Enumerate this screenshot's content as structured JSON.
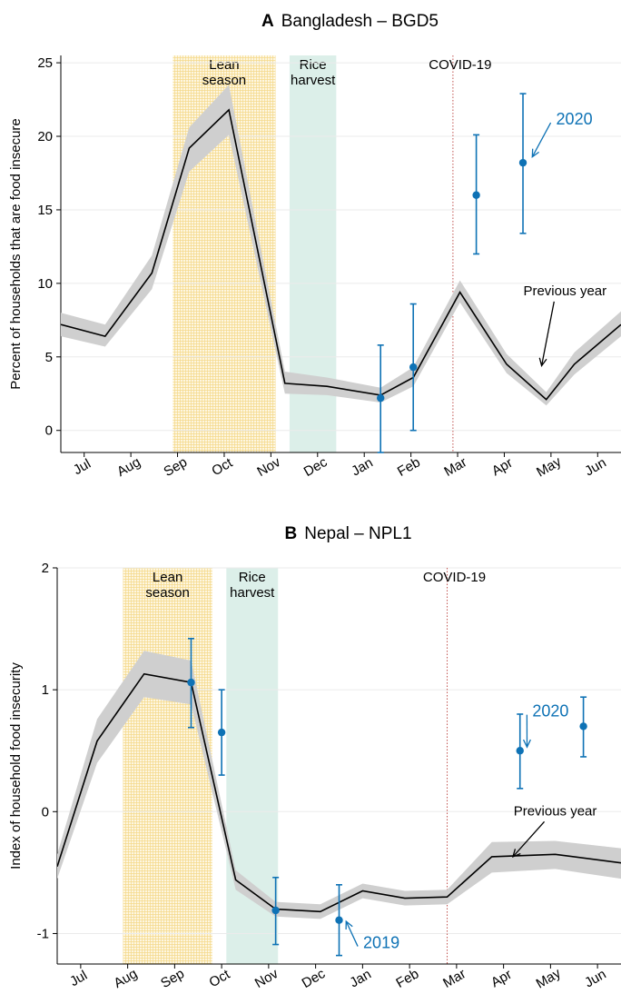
{
  "chart_data": [
    {
      "type": "line",
      "panel_letter": "A",
      "title": "Bangladesh – BGD5",
      "xlabel": "",
      "ylabel": "Percent of households that are food insecure",
      "ylim": [
        -1.5,
        25.5
      ],
      "yticks": [
        0,
        5,
        10,
        15,
        20,
        25
      ],
      "xlim": [
        0,
        12
      ],
      "xtick_positions": [
        0.5,
        1.5,
        2.5,
        3.5,
        4.5,
        5.5,
        6.5,
        7.5,
        8.5,
        9.5,
        10.5,
        11.5
      ],
      "xtick_labels": [
        "Jul",
        "Aug",
        "Sep",
        "Oct",
        "Nov",
        "Dec",
        "Jan",
        "Feb",
        "Mar",
        "Apr",
        "May",
        "Jun"
      ],
      "shaded_regions": [
        {
          "label": "Lean season",
          "start": 2.4,
          "end": 4.6,
          "color": "#f5d98a"
        },
        {
          "label": "Rice harvest",
          "start": 4.9,
          "end": 5.9,
          "color": "#dcefe9"
        }
      ],
      "event_line": {
        "label": "COVID-19",
        "x": 8.4,
        "color": "#c0504d"
      },
      "series": [
        {
          "name": "Previous year",
          "color": "#000000",
          "ci_color": "#cfcfcf",
          "x": [
            0,
            0.95,
            1.95,
            2.75,
            3.6,
            4.8,
            5.7,
            6.85,
            7.55,
            8.55,
            9.55,
            10.4,
            11.0,
            12.0
          ],
          "y": [
            7.2,
            6.4,
            10.7,
            19.2,
            21.8,
            3.2,
            3.0,
            2.4,
            3.6,
            9.4,
            4.5,
            2.1,
            4.5,
            7.2
          ],
          "lower": [
            6.4,
            5.7,
            9.6,
            17.6,
            20.1,
            2.5,
            2.4,
            1.9,
            3.0,
            8.7,
            3.9,
            1.7,
            3.8,
            6.4
          ],
          "upper": [
            8.0,
            7.2,
            11.9,
            20.6,
            23.5,
            4.0,
            3.6,
            2.9,
            4.3,
            10.2,
            5.2,
            2.6,
            5.3,
            8.1
          ]
        },
        {
          "name": "2020",
          "color": "#0e72b5",
          "points": [
            {
              "x": 6.85,
              "y": 2.2,
              "lower": -1.5,
              "upper": 5.8
            },
            {
              "x": 7.55,
              "y": 4.3,
              "lower": 0.0,
              "upper": 8.6
            },
            {
              "x": 8.9,
              "y": 16.0,
              "lower": 12.0,
              "upper": 20.1
            },
            {
              "x": 9.9,
              "y": 18.2,
              "lower": 13.4,
              "upper": 22.9
            }
          ]
        }
      ],
      "annotations": [
        {
          "text": "2020",
          "color": "#0e72b5",
          "x": 11.0,
          "y": 20.8,
          "arrow_to": [
            10.1,
            18.6
          ]
        },
        {
          "text": "Previous year",
          "color": "#000000",
          "x": 10.8,
          "y": 9.2,
          "arrow_to": [
            10.3,
            4.4
          ]
        }
      ],
      "grid": "horizontal"
    },
    {
      "type": "line",
      "panel_letter": "B",
      "title": "Nepal – NPL1",
      "xlabel": "",
      "ylabel": "Index of household food insecurity",
      "ylim": [
        -1.25,
        2.0
      ],
      "yticks": [
        -1,
        0,
        1,
        2
      ],
      "xlim": [
        0,
        12
      ],
      "xtick_positions": [
        0.5,
        1.5,
        2.5,
        3.5,
        4.5,
        5.5,
        6.5,
        7.5,
        8.5,
        9.5,
        10.5,
        11.5
      ],
      "xtick_labels": [
        "Jul",
        "Aug",
        "Sep",
        "Oct",
        "Nov",
        "Dec",
        "Jan",
        "Feb",
        "Mar",
        "Apr",
        "May",
        "Jun"
      ],
      "shaded_regions": [
        {
          "label": "Lean season",
          "start": 1.4,
          "end": 3.3,
          "color": "#f5d98a"
        },
        {
          "label": "Rice harvest",
          "start": 3.6,
          "end": 4.7,
          "color": "#dcefe9"
        }
      ],
      "event_line": {
        "label": "COVID-19",
        "x": 8.3,
        "color": "#c0504d"
      },
      "series": [
        {
          "name": "Previous year",
          "color": "#000000",
          "ci_color": "#cfcfcf",
          "x": [
            0,
            0.85,
            1.85,
            2.85,
            3.8,
            4.65,
            5.6,
            6.5,
            7.4,
            8.3,
            9.25,
            10.6,
            12.0
          ],
          "y": [
            -0.45,
            0.58,
            1.13,
            1.06,
            -0.56,
            -0.8,
            -0.82,
            -0.65,
            -0.71,
            -0.7,
            -0.37,
            -0.35,
            -0.42
          ],
          "lower": [
            -0.55,
            0.4,
            0.94,
            0.88,
            -0.64,
            -0.86,
            -0.88,
            -0.71,
            -0.77,
            -0.76,
            -0.5,
            -0.47,
            -0.55
          ],
          "upper": [
            -0.35,
            0.76,
            1.32,
            1.24,
            -0.48,
            -0.74,
            -0.76,
            -0.59,
            -0.65,
            -0.64,
            -0.25,
            -0.24,
            -0.3
          ]
        },
        {
          "name": "2020",
          "color": "#0e72b5",
          "points": [
            {
              "x": 2.85,
              "y": 1.06,
              "lower": 0.69,
              "upper": 1.42
            },
            {
              "x": 3.5,
              "y": 0.65,
              "lower": 0.3,
              "upper": 1.0
            },
            {
              "x": 9.85,
              "y": 0.5,
              "lower": 0.19,
              "upper": 0.8
            },
            {
              "x": 11.2,
              "y": 0.7,
              "lower": 0.45,
              "upper": 0.94
            }
          ]
        },
        {
          "name": "2019",
          "color": "#0e72b5",
          "points": [
            {
              "x": 4.65,
              "y": -0.81,
              "lower": -1.09,
              "upper": -0.54
            },
            {
              "x": 6.0,
              "y": -0.89,
              "lower": -1.18,
              "upper": -0.6
            }
          ]
        }
      ],
      "annotations": [
        {
          "text": "2020",
          "color": "#0e72b5",
          "x": 10.5,
          "y": 0.78,
          "arrow_to": [
            10.0,
            0.53
          ]
        },
        {
          "text": "2019",
          "color": "#0e72b5",
          "x": 6.9,
          "y": -1.12,
          "arrow_to": [
            6.15,
            -0.9
          ]
        },
        {
          "text": "Previous year",
          "color": "#000000",
          "x": 10.6,
          "y": -0.03,
          "arrow_to": [
            9.7,
            -0.37
          ]
        }
      ],
      "grid": "horizontal"
    }
  ]
}
